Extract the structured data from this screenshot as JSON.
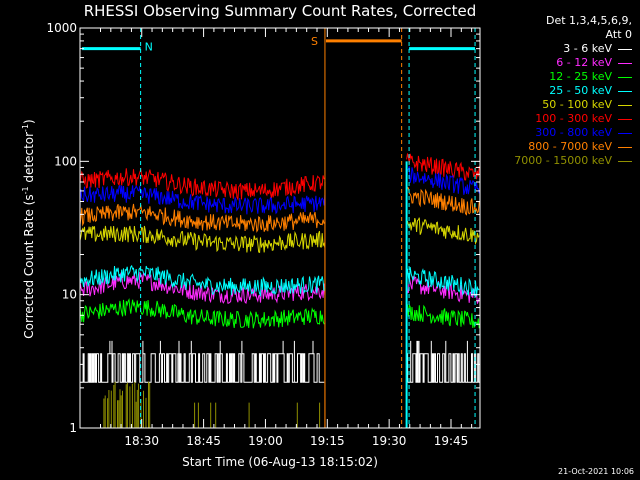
{
  "chart_data": {
    "type": "line",
    "title": "RHESSI Observing Summary Count Rates, Corrected",
    "xlabel": "Start Time (06-Aug-13 18:15:02)",
    "ylabel_main": "Corrected Count Rate (s",
    "ylabel_sup1": "-1",
    "ylabel_mid": " detector",
    "ylabel_sup2": "-1",
    "ylabel_end": ")",
    "y_scale": "log",
    "ylim": [
      1,
      1000
    ],
    "y_ticks": [
      {
        "value": 1,
        "label": "1"
      },
      {
        "value": 10,
        "label": "10"
      },
      {
        "value": 100,
        "label": "100"
      },
      {
        "value": 1000,
        "label": "1000"
      }
    ],
    "x_unit": "minutes after 18:15:02",
    "xlim": [
      0,
      97
    ],
    "x_ticks": [
      {
        "value": 14.97,
        "label": "18:30"
      },
      {
        "value": 29.97,
        "label": "18:45"
      },
      {
        "value": 44.97,
        "label": "19:00"
      },
      {
        "value": 59.97,
        "label": "19:15"
      },
      {
        "value": 74.97,
        "label": "19:30"
      },
      {
        "value": 89.97,
        "label": "19:45"
      }
    ],
    "gap": [
      59.4,
      79.2
    ],
    "legend": {
      "header1": "Det 1,3,4,5,6,9,",
      "header2": "Att 0"
    },
    "series": [
      {
        "name": "3 - 6 keV",
        "color": "#ffffff",
        "low": 2.2,
        "high": 3.6,
        "segment2": [
          2.2,
          3.6
        ]
      },
      {
        "name": "6 - 12 keV",
        "color": "#ff2cff",
        "start": 10.5,
        "peak": 13.0,
        "mid": 10.0,
        "end": 10.8,
        "s2start": 12.0,
        "s2end": 9.8
      },
      {
        "name": "12 - 25 keV",
        "color": "#00ff00",
        "start": 7.0,
        "peak": 8.3,
        "mid": 6.5,
        "end": 7.0,
        "s2start": 7.5,
        "s2end": 6.3
      },
      {
        "name": "25 - 50 keV",
        "color": "#00ffff",
        "start": 12.5,
        "peak": 15.0,
        "mid": 11.5,
        "end": 12.0,
        "s2start": 14.0,
        "s2end": 11.3
      },
      {
        "name": "50 - 100 keV",
        "color": "#d6d600",
        "start": 28.0,
        "peak": 30.0,
        "mid": 24.0,
        "end": 26.0,
        "s2start": 34.0,
        "s2end": 28.0
      },
      {
        "name": "100 - 300 keV",
        "color": "#ff0000",
        "start": 70.0,
        "peak": 80.0,
        "mid": 60.0,
        "end": 70.0,
        "s2start": 100.0,
        "s2end": 80.0
      },
      {
        "name": "300 - 800 keV",
        "color": "#0000ff",
        "start": 55.0,
        "peak": 60.0,
        "mid": 46.0,
        "end": 49.0,
        "s2start": 80.0,
        "s2end": 62.0
      },
      {
        "name": "800 - 7000 keV",
        "color": "#ff8000",
        "start": 38.0,
        "peak": 43.0,
        "mid": 34.0,
        "end": 37.0,
        "s2start": 56.0,
        "s2end": 45.0
      },
      {
        "name": "7000 - 15000 keV",
        "color": "#909000"
      }
    ],
    "annotations": [
      {
        "label": "N",
        "color": "#00ffff",
        "x_start": 0.5,
        "x_end": 14.7,
        "y": 700,
        "vline_x": 14.7,
        "vline2_x": 79.8,
        "x2_start": 79.8,
        "x2_end": 95.8,
        "vline3_x": 95.8
      },
      {
        "label": "S",
        "color": "#ff8000",
        "x_start": 59.4,
        "x_end": 78.0,
        "y": 800,
        "vline_x": 59.4,
        "vline2_x": 78.0
      }
    ],
    "timestamp": "21-Oct-2021 10:06"
  }
}
